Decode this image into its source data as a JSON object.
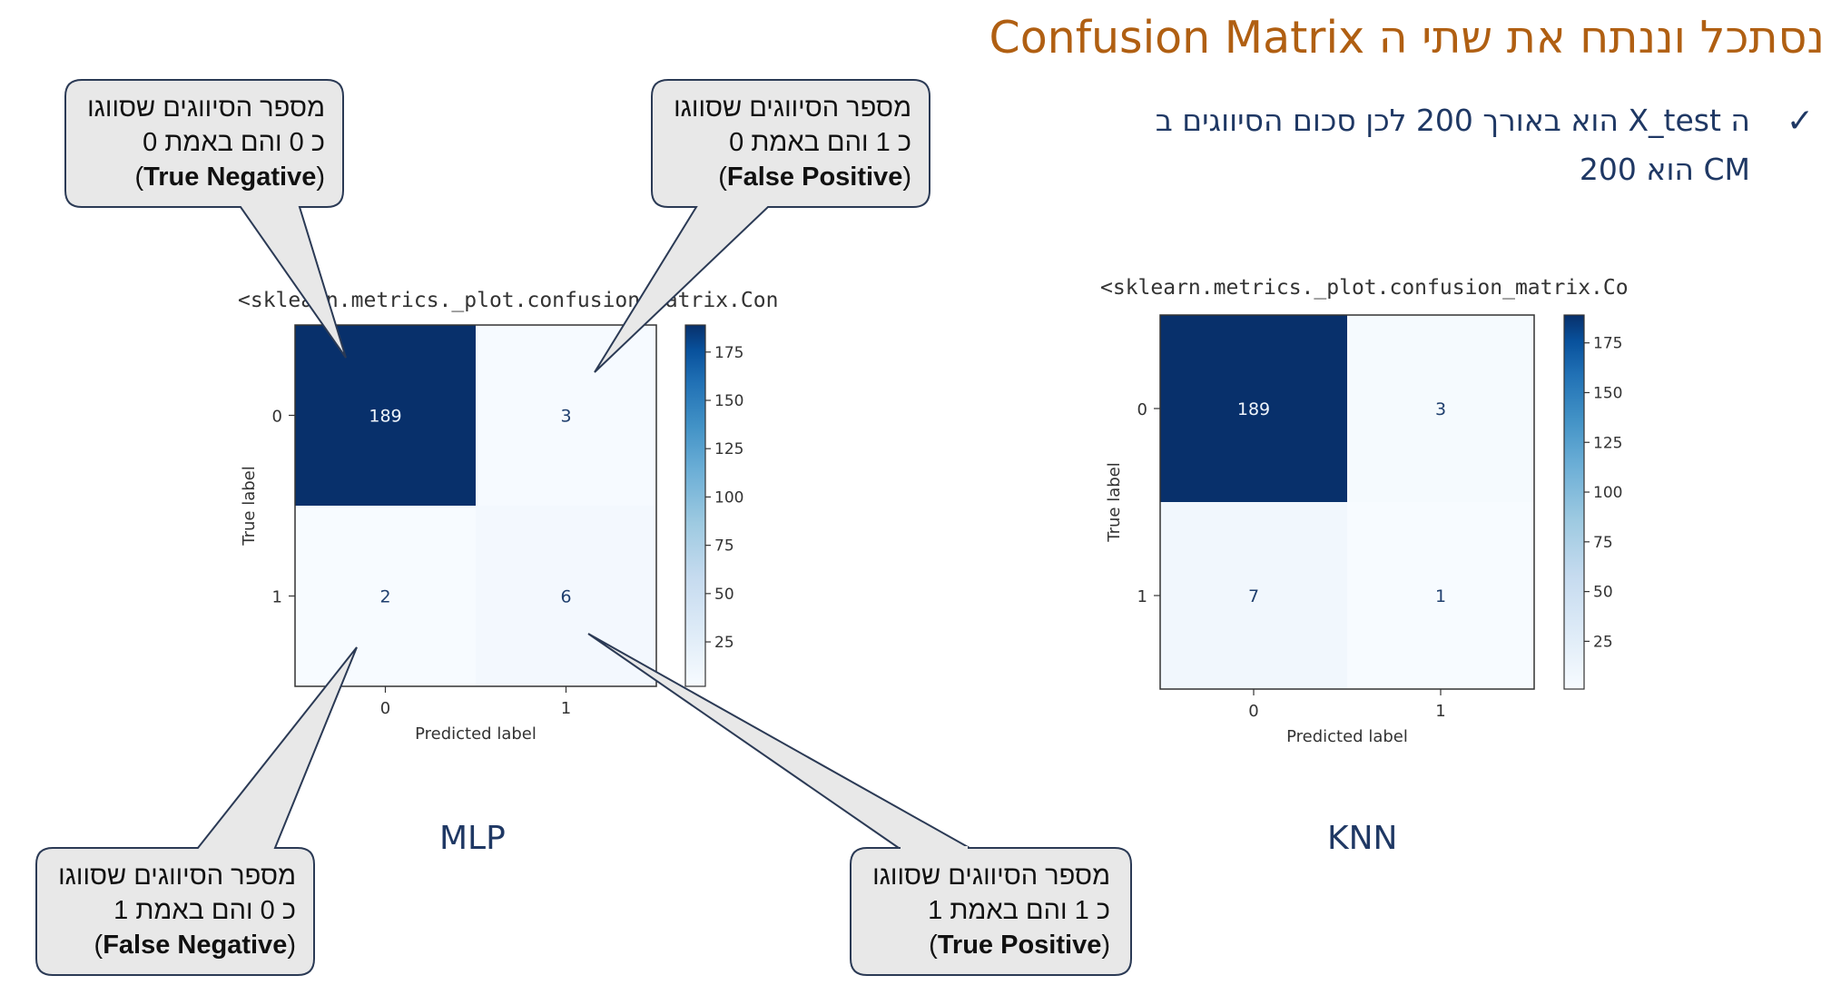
{
  "slide": {
    "title": "נסתכל וננתח את שתי ה Confusion Matrix",
    "bullet_check": "✓",
    "bullet_line1": "ה X_test הוא באורך 200 לכן סכום הסיווגים ב",
    "bullet_line2": "CM הוא 200"
  },
  "callouts": {
    "tn": {
      "line1": "מספר הסיווגים שסווגו",
      "line2": "כ 0 והם באמת 0",
      "open": "(",
      "term": "True Negative",
      "close": ")"
    },
    "fp": {
      "line1": "מספר הסיווגים שסווגו",
      "line2": "כ 1 והם באמת 0",
      "open": "(",
      "term": "False Positive",
      "close": ")"
    },
    "fn": {
      "line1": "מספר הסיווגים שסווגו",
      "line2": "כ 0 והם באמת 1",
      "open": "(",
      "term": "False Negative",
      "close": ")"
    },
    "tp": {
      "line1": "מספר הסיווגים שסווגו",
      "line2": "כ 1 והם באמת 1",
      "open": "(",
      "term": "True Positive",
      "close": ")"
    }
  },
  "colors": {
    "title": "#b05f12",
    "text": "#1f3864",
    "callout_fill": "#e8e8e8",
    "callout_stroke": "#2b3a55",
    "dark_cell": "#08306b",
    "light_cell": "#f4f8fd"
  },
  "chart_data": [
    {
      "type": "heatmap",
      "model": "MLP",
      "caption": "<sklearn.metrics._plot.confusion_matrix.Con",
      "xlabel": "Predicted label",
      "ylabel": "True label",
      "x_categories": [
        "0",
        "1"
      ],
      "y_categories": [
        "0",
        "1"
      ],
      "values": [
        [
          189,
          3
        ],
        [
          2,
          6
        ]
      ],
      "colorbar": {
        "cmap": "Blues",
        "ticks": [
          "175",
          "150",
          "125",
          "100",
          "75",
          "50",
          "25"
        ],
        "range": [
          2,
          189
        ]
      }
    },
    {
      "type": "heatmap",
      "model": "KNN",
      "caption": "<sklearn.metrics._plot.confusion_matrix.Co",
      "xlabel": "Predicted label",
      "ylabel": "True label",
      "x_categories": [
        "0",
        "1"
      ],
      "y_categories": [
        "0",
        "1"
      ],
      "values": [
        [
          189,
          3
        ],
        [
          7,
          1
        ]
      ],
      "colorbar": {
        "cmap": "Blues",
        "ticks": [
          "175",
          "150",
          "125",
          "100",
          "75",
          "50",
          "25"
        ],
        "range": [
          1,
          189
        ]
      }
    }
  ]
}
